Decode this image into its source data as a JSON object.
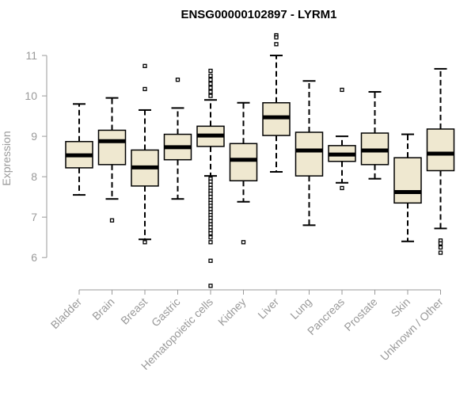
{
  "chart_data": {
    "type": "boxplot",
    "title": "ENSG00000102897 - LYRM1",
    "xlabel": "",
    "ylabel": "Expression",
    "ylim": [
      5.2,
      11.55
    ],
    "yticks": [
      6,
      7,
      8,
      9,
      10,
      11
    ],
    "colors": {
      "box_fill": "#efe8d0",
      "stroke": "#000000",
      "axis": "#9a9a9a"
    },
    "categories": [
      "Bladder",
      "Brain",
      "Breast",
      "Gastric",
      "Hematopoietic cells",
      "Kidney",
      "Liver",
      "Lung",
      "Pancreas",
      "Prostate",
      "Skin",
      "Unknown / Other"
    ],
    "boxes": [
      {
        "name": "Bladder",
        "whislo": 7.55,
        "q1": 8.22,
        "med": 8.53,
        "q3": 8.87,
        "whishi": 9.8,
        "fliers": []
      },
      {
        "name": "Brain",
        "whislo": 7.45,
        "q1": 8.3,
        "med": 8.88,
        "q3": 9.15,
        "whishi": 9.95,
        "fliers": [
          6.92
        ]
      },
      {
        "name": "Breast",
        "whislo": 6.45,
        "q1": 7.77,
        "med": 8.23,
        "q3": 8.66,
        "whishi": 9.65,
        "fliers": [
          10.74,
          10.17,
          6.38
        ]
      },
      {
        "name": "Gastric",
        "whislo": 7.45,
        "q1": 8.42,
        "med": 8.73,
        "q3": 9.05,
        "whishi": 9.7,
        "fliers": [
          10.4
        ]
      },
      {
        "name": "Hematopoietic cells",
        "whislo": 8.02,
        "q1": 8.75,
        "med": 9.02,
        "q3": 9.25,
        "whishi": 9.9,
        "fliers": [
          10.62,
          10.5,
          10.4,
          10.3,
          10.2,
          10.1,
          10.0,
          7.95,
          7.88,
          7.8,
          7.72,
          7.65,
          7.58,
          7.5,
          7.42,
          7.35,
          7.28,
          7.2,
          7.12,
          7.05,
          6.98,
          6.9,
          6.82,
          6.75,
          6.67,
          6.6,
          6.5,
          6.38,
          5.92,
          5.3
        ]
      },
      {
        "name": "Kidney",
        "whislo": 7.38,
        "q1": 7.9,
        "med": 8.42,
        "q3": 8.82,
        "whishi": 9.83,
        "fliers": [
          6.38
        ]
      },
      {
        "name": "Liver",
        "whislo": 8.12,
        "q1": 9.02,
        "med": 9.47,
        "q3": 9.83,
        "whishi": 11.0,
        "fliers": [
          11.5,
          11.45,
          11.28
        ]
      },
      {
        "name": "Lung",
        "whislo": 6.8,
        "q1": 8.02,
        "med": 8.65,
        "q3": 9.1,
        "whishi": 10.37,
        "fliers": []
      },
      {
        "name": "Pancreas",
        "whislo": 7.85,
        "q1": 8.38,
        "med": 8.55,
        "q3": 8.77,
        "whishi": 9.0,
        "fliers": [
          10.15,
          7.72
        ]
      },
      {
        "name": "Prostate",
        "whislo": 7.95,
        "q1": 8.3,
        "med": 8.65,
        "q3": 9.08,
        "whishi": 10.1,
        "fliers": []
      },
      {
        "name": "Skin",
        "whislo": 6.4,
        "q1": 7.35,
        "med": 7.62,
        "q3": 8.47,
        "whishi": 9.05,
        "fliers": []
      },
      {
        "name": "Unknown / Other",
        "whislo": 6.72,
        "q1": 8.15,
        "med": 8.57,
        "q3": 9.18,
        "whishi": 10.67,
        "fliers": [
          6.42,
          6.35,
          6.25,
          6.12
        ]
      }
    ]
  }
}
